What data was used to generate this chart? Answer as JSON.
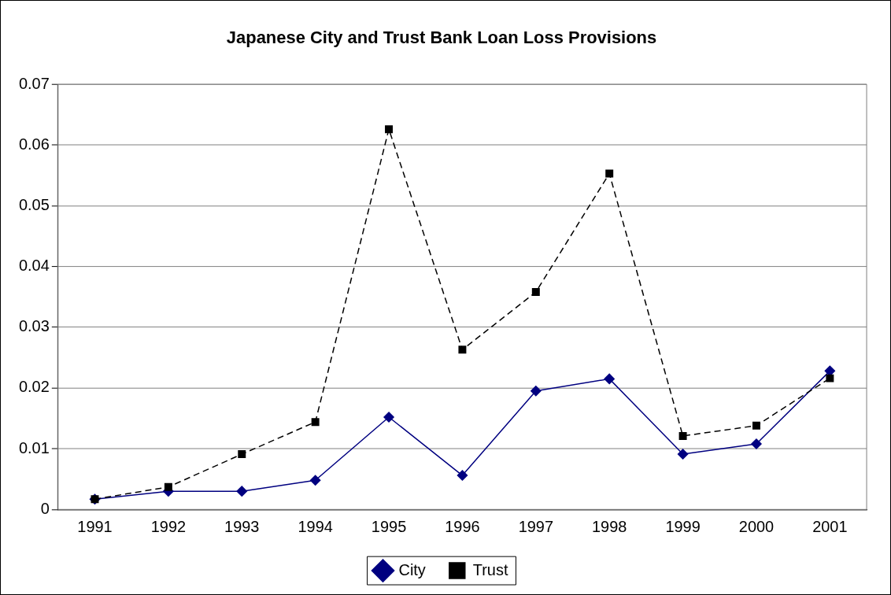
{
  "chart_data": {
    "type": "line",
    "title": "Japanese City and Trust Bank Loan Loss Provisions",
    "categories": [
      "1991",
      "1992",
      "1993",
      "1994",
      "1995",
      "1996",
      "1997",
      "1998",
      "1999",
      "2000",
      "2001"
    ],
    "series": [
      {
        "name": "City",
        "color": "#000080",
        "marker": "diamond",
        "line_style": "solid",
        "values": [
          0.0017,
          0.003,
          0.003,
          0.0048,
          0.0152,
          0.0056,
          0.0195,
          0.0215,
          0.0091,
          0.0108,
          0.0228
        ]
      },
      {
        "name": "Trust",
        "color": "#000000",
        "marker": "square",
        "line_style": "dashed",
        "values": [
          0.0017,
          0.0037,
          0.0091,
          0.0144,
          0.0626,
          0.0263,
          0.0358,
          0.0553,
          0.0121,
          0.0138,
          0.0216
        ]
      }
    ],
    "ylim": [
      0,
      0.07
    ],
    "yticks": [
      0,
      0.01,
      0.02,
      0.03,
      0.04,
      0.05,
      0.06,
      0.07
    ],
    "grid": "y",
    "legend": "bottom"
  }
}
